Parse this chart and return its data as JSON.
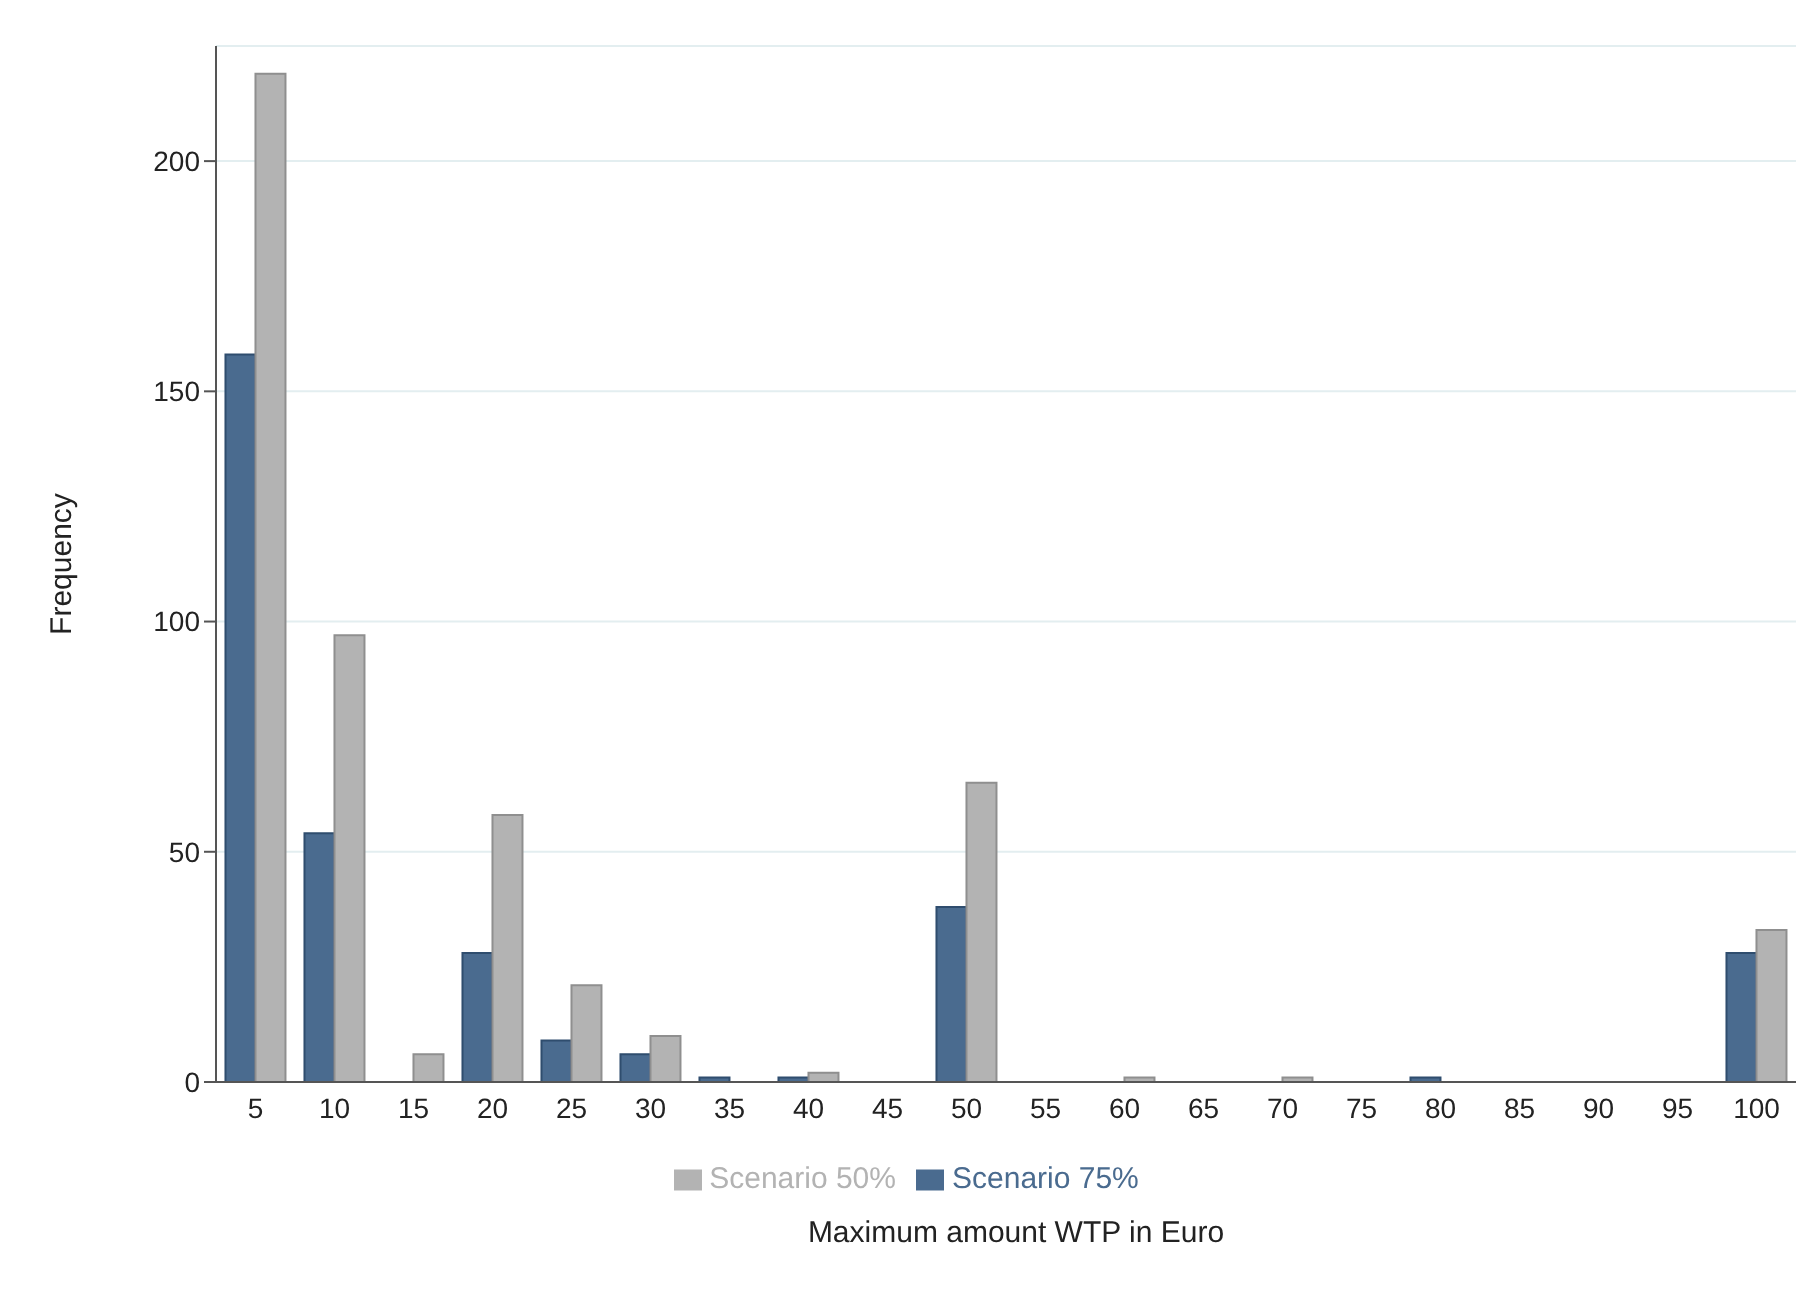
{
  "chart_data": {
    "type": "bar",
    "xlabel": "Maximum amount WTP in Euro",
    "ylabel": "Frequency",
    "categories": [
      "5",
      "10",
      "15",
      "20",
      "25",
      "30",
      "35",
      "40",
      "45",
      "50",
      "55",
      "60",
      "65",
      "70",
      "75",
      "80",
      "85",
      "90",
      "95",
      "100"
    ],
    "series": [
      {
        "name": "Scenario 75%",
        "color": "#4a6b8f",
        "values": [
          158,
          54,
          0,
          28,
          9,
          6,
          1,
          1,
          0,
          38,
          0,
          0,
          0,
          0,
          0,
          1,
          0,
          0,
          0,
          28
        ]
      },
      {
        "name": "Scenario 50%",
        "color": "#b3b3b3",
        "values": [
          219,
          97,
          6,
          58,
          21,
          10,
          0,
          2,
          0,
          65,
          0,
          1,
          0,
          1,
          0,
          0,
          0,
          0,
          0,
          33
        ]
      }
    ],
    "ylim": [
      0,
      225
    ],
    "yticks": [
      0,
      50,
      100,
      150,
      200
    ],
    "grid": "y",
    "legend": "bottom"
  }
}
